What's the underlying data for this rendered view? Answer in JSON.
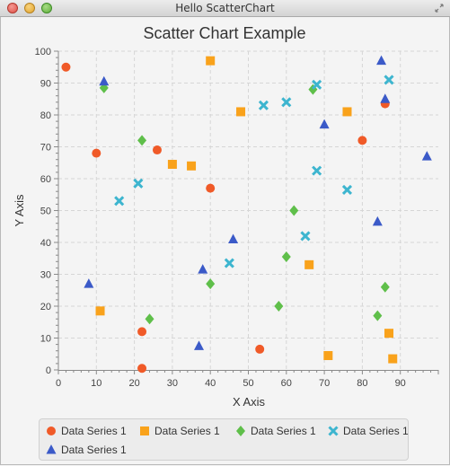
{
  "window": {
    "title": "Hello ScatterChart",
    "close_icon": "close-icon",
    "minimize_icon": "minimize-icon",
    "maximize_icon": "maximize-icon",
    "resize_icon": "resize-icon"
  },
  "chart_data": {
    "type": "scatter",
    "title": "Scatter Chart Example",
    "xlabel": "X Axis",
    "ylabel": "Y Axis",
    "xlim": [
      0,
      100
    ],
    "ylim": [
      0,
      100
    ],
    "x_ticks": [
      "0",
      "10",
      "20",
      "30",
      "40",
      "50",
      "60",
      "70",
      "80",
      "90"
    ],
    "y_ticks": [
      "0",
      "10",
      "20",
      "30",
      "40",
      "50",
      "60",
      "70",
      "80",
      "90",
      "100"
    ],
    "grid": true,
    "legend_position": "bottom",
    "series": [
      {
        "name": "Data Series 1",
        "marker": "circle",
        "color": "#f05a28",
        "points": [
          [
            2,
            95
          ],
          [
            10,
            68
          ],
          [
            22,
            12
          ],
          [
            22,
            0.5
          ],
          [
            26,
            69
          ],
          [
            40,
            57
          ],
          [
            53,
            6.5
          ],
          [
            80,
            72
          ],
          [
            86,
            83.5
          ]
        ]
      },
      {
        "name": "Data Series 1",
        "marker": "square",
        "color": "#f9a21b",
        "points": [
          [
            11,
            18.5
          ],
          [
            30,
            64.5
          ],
          [
            35,
            64
          ],
          [
            40,
            97
          ],
          [
            48,
            81
          ],
          [
            66,
            33
          ],
          [
            71,
            4.5
          ],
          [
            76,
            81
          ],
          [
            87,
            11.5
          ],
          [
            88,
            3.5
          ]
        ]
      },
      {
        "name": "Data Series 1",
        "marker": "diamond",
        "color": "#5fbf4a",
        "points": [
          [
            12,
            88.5
          ],
          [
            22,
            72
          ],
          [
            24,
            16
          ],
          [
            40,
            27
          ],
          [
            58,
            20
          ],
          [
            60,
            35.5
          ],
          [
            62,
            50
          ],
          [
            67,
            88
          ],
          [
            84,
            17
          ],
          [
            86,
            26
          ]
        ]
      },
      {
        "name": "Data Series 1",
        "marker": "cross",
        "color": "#3db5cf",
        "points": [
          [
            16,
            53
          ],
          [
            21,
            58.5
          ],
          [
            45,
            33.5
          ],
          [
            54,
            83
          ],
          [
            60,
            84
          ],
          [
            65,
            42
          ],
          [
            68,
            62.5
          ],
          [
            68,
            89.5
          ],
          [
            76,
            56.5
          ],
          [
            87,
            91
          ]
        ]
      },
      {
        "name": "Data Series 1",
        "marker": "triangle",
        "color": "#3b5ac8",
        "points": [
          [
            8,
            27
          ],
          [
            12,
            90.5
          ],
          [
            37,
            7.5
          ],
          [
            38,
            31.5
          ],
          [
            46,
            41
          ],
          [
            70,
            77
          ],
          [
            84,
            46.5
          ],
          [
            85,
            97
          ],
          [
            86,
            85
          ],
          [
            97,
            67
          ]
        ]
      }
    ]
  }
}
